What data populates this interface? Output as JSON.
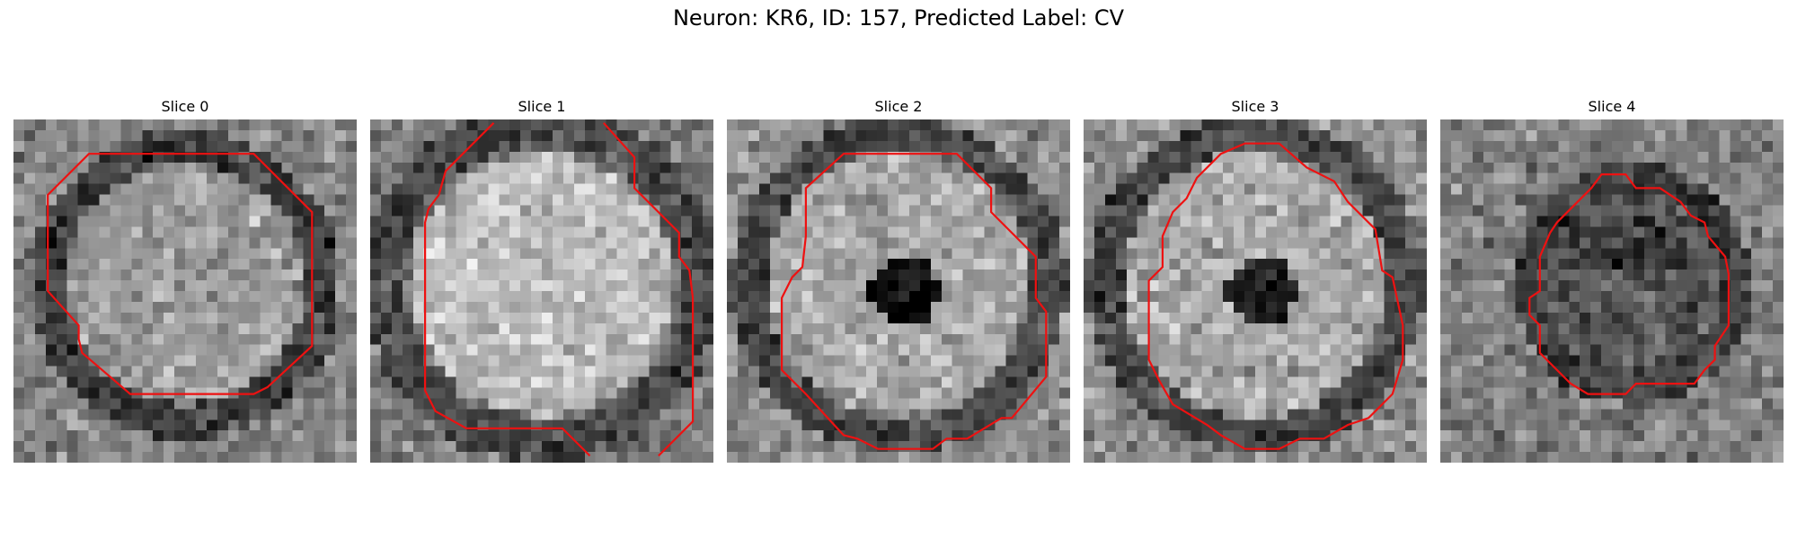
{
  "figure": {
    "title": "Neuron: KR6, ID: 157, Predicted Label: CV"
  },
  "panels": [
    {
      "title": "Slice 0",
      "pattern": "light-ring",
      "contour_open": false
    },
    {
      "title": "Slice 1",
      "pattern": "bright-blob",
      "contour_open": true
    },
    {
      "title": "Slice 2",
      "pattern": "dark-center",
      "contour_open": false
    },
    {
      "title": "Slice 3",
      "pattern": "dark-center",
      "contour_open": false
    },
    {
      "title": "Slice 4",
      "pattern": "dark-disk",
      "contour_open": false
    }
  ],
  "colors": {
    "contour": "#ee1111",
    "colormap": "gray"
  }
}
